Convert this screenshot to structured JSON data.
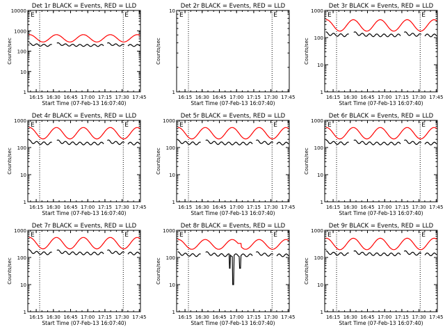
{
  "chart_data": [
    {
      "type": "line",
      "title": "Det 1r BLACK = Events, RED = LLD",
      "xlabel": "Start Time (07-Feb-13 16:07:40)",
      "ylabel": "Counts/sec",
      "ylim": [
        1,
        10000
      ],
      "yscale": "log",
      "xlim": [
        "16:07:40",
        "17:46:00"
      ],
      "x_ticks": [
        "16:15",
        "16:30",
        "16:45",
        "17:00",
        "17:15",
        "17:30",
        "17:45"
      ],
      "y_ticks": [
        "1",
        "10",
        "100",
        "1000",
        "10000"
      ],
      "marker": "E",
      "vlines": [
        "16:18",
        "17:31"
      ],
      "series": [
        {
          "name": "Events",
          "color": "#000000",
          "baseline": 190,
          "gaps": [
            [
              "16:29",
              "16:33"
            ],
            [
              "17:14",
              "17:17"
            ],
            [
              "17:32",
              "17:35"
            ]
          ]
        },
        {
          "name": "LLD",
          "color": "#ff0000",
          "baseline": 380,
          "amplitude": 0.3
        }
      ]
    },
    {
      "type": "line",
      "title": "Det 2r BLACK = Events, RED = LLD",
      "xlabel": "Start Time (07-Feb-13 16:07:40)",
      "ylabel": "Counts/sec",
      "ylim": [
        1,
        10
      ],
      "yscale": "log",
      "xlim": [
        "16:07:40",
        "17:46:00"
      ],
      "x_ticks": [
        "16:15",
        "16:30",
        "16:45",
        "17:00",
        "17:15",
        "17:30",
        "17:45"
      ],
      "y_ticks": [
        "1",
        "10"
      ],
      "marker": "E",
      "vlines": [
        "16:18",
        "17:31"
      ],
      "series": []
    },
    {
      "type": "line",
      "title": "Det 3r BLACK = Events, RED = LLD",
      "xlabel": "Start Time (07-Feb-13 16:07:40)",
      "ylabel": "Counts/sec",
      "ylim": [
        1,
        1000
      ],
      "yscale": "log",
      "xlim": [
        "16:07:40",
        "17:46:00"
      ],
      "x_ticks": [
        "16:15",
        "16:30",
        "16:45",
        "17:00",
        "17:15",
        "17:30",
        "17:45"
      ],
      "y_ticks": [
        "1",
        "10",
        "100",
        "1000"
      ],
      "marker": "E",
      "vlines": [
        "16:18",
        "17:31"
      ],
      "series": [
        {
          "name": "Events",
          "color": "#000000",
          "baseline": 120,
          "gaps": [
            [
              "16:29",
              "16:33"
            ],
            [
              "17:14",
              "17:17"
            ],
            [
              "17:32",
              "17:35"
            ]
          ]
        },
        {
          "name": "LLD",
          "color": "#ff0000",
          "baseline": 250,
          "amplitude": 0.35
        }
      ]
    },
    {
      "type": "line",
      "title": "Det 4r BLACK = Events, RED = LLD",
      "xlabel": "Start Time (07-Feb-13 16:07:40)",
      "ylabel": "Counts/sec",
      "ylim": [
        1,
        1000
      ],
      "yscale": "log",
      "xlim": [
        "16:07:40",
        "17:46:00"
      ],
      "x_ticks": [
        "16:15",
        "16:30",
        "16:45",
        "17:00",
        "17:15",
        "17:30",
        "17:45"
      ],
      "y_ticks": [
        "1",
        "10",
        "100",
        "1000"
      ],
      "marker": "E",
      "vlines": [
        "16:18",
        "17:31"
      ],
      "series": [
        {
          "name": "Events",
          "color": "#000000",
          "baseline": 140,
          "gaps": [
            [
              "16:29",
              "16:33"
            ],
            [
              "17:14",
              "17:17"
            ],
            [
              "17:32",
              "17:35"
            ]
          ]
        },
        {
          "name": "LLD",
          "color": "#ff0000",
          "baseline": 300,
          "amplitude": 0.35
        }
      ]
    },
    {
      "type": "line",
      "title": "Det 5r BLACK = Events, RED = LLD",
      "xlabel": "Start Time (07-Feb-13 16:07:40)",
      "ylabel": "Counts/sec",
      "ylim": [
        1,
        1000
      ],
      "yscale": "log",
      "xlim": [
        "16:07:40",
        "17:46:00"
      ],
      "x_ticks": [
        "16:15",
        "16:30",
        "16:45",
        "17:00",
        "17:15",
        "17:30",
        "17:45"
      ],
      "y_ticks": [
        "1",
        "10",
        "100",
        "1000"
      ],
      "marker": "E",
      "vlines": [
        "16:18",
        "17:31"
      ],
      "series": [
        {
          "name": "Events",
          "color": "#000000",
          "baseline": 140,
          "gaps": [
            [
              "16:29",
              "16:33"
            ],
            [
              "17:14",
              "17:17"
            ],
            [
              "17:32",
              "17:35"
            ]
          ]
        },
        {
          "name": "LLD",
          "color": "#ff0000",
          "baseline": 300,
          "amplitude": 0.35
        }
      ]
    },
    {
      "type": "line",
      "title": "Det 6r BLACK = Events, RED = LLD",
      "xlabel": "Start Time (07-Feb-13 16:07:40)",
      "ylabel": "Counts/sec",
      "ylim": [
        1,
        1000
      ],
      "yscale": "log",
      "xlim": [
        "16:07:40",
        "17:46:00"
      ],
      "x_ticks": [
        "16:15",
        "16:30",
        "16:45",
        "17:00",
        "17:15",
        "17:30",
        "17:45"
      ],
      "y_ticks": [
        "1",
        "10",
        "100",
        "1000"
      ],
      "marker": "E",
      "vlines": [
        "16:18",
        "17:31"
      ],
      "series": [
        {
          "name": "Events",
          "color": "#000000",
          "baseline": 140,
          "gaps": [
            [
              "16:29",
              "16:33"
            ],
            [
              "17:14",
              "17:17"
            ],
            [
              "17:32",
              "17:35"
            ]
          ]
        },
        {
          "name": "LLD",
          "color": "#ff0000",
          "baseline": 300,
          "amplitude": 0.35
        }
      ]
    },
    {
      "type": "line",
      "title": "Det 7r BLACK = Events, RED = LLD",
      "xlabel": "Start Time (07-Feb-13 16:07:40)",
      "ylabel": "Counts/sec",
      "ylim": [
        1,
        1000
      ],
      "yscale": "log",
      "xlim": [
        "16:07:40",
        "17:46:00"
      ],
      "x_ticks": [
        "16:15",
        "16:30",
        "16:45",
        "17:00",
        "17:15",
        "17:30",
        "17:45"
      ],
      "y_ticks": [
        "1",
        "10",
        "100",
        "1000"
      ],
      "marker": "E",
      "vlines": [
        "16:18",
        "17:31"
      ],
      "series": [
        {
          "name": "Events",
          "color": "#000000",
          "baseline": 140,
          "gaps": [
            [
              "16:29",
              "16:33"
            ],
            [
              "17:14",
              "17:17"
            ],
            [
              "17:32",
              "17:35"
            ]
          ]
        },
        {
          "name": "LLD",
          "color": "#ff0000",
          "baseline": 300,
          "amplitude": 0.35
        }
      ]
    },
    {
      "type": "line",
      "title": "Det 8r BLACK = Events, RED = LLD",
      "xlabel": "Start Time (07-Feb-13 16:07:40)",
      "ylabel": "Counts/sec",
      "ylim": [
        1,
        1000
      ],
      "yscale": "log",
      "xlim": [
        "16:07:40",
        "17:46:00"
      ],
      "x_ticks": [
        "16:15",
        "16:30",
        "16:45",
        "17:00",
        "17:15",
        "17:30",
        "17:45"
      ],
      "y_ticks": [
        "1",
        "10",
        "100",
        "1000"
      ],
      "marker": "E",
      "vlines": [
        "16:18",
        "17:31"
      ],
      "series": [
        {
          "name": "Events",
          "color": "#000000",
          "baseline": 120,
          "gaps": [
            [
              "16:29",
              "16:33"
            ],
            [
              "17:14",
              "17:17"
            ],
            [
              "17:32",
              "17:35"
            ]
          ],
          "dips": [
            [
              "16:54",
              40
            ],
            [
              "16:57",
              10
            ],
            [
              "17:03",
              40
            ]
          ]
        },
        {
          "name": "LLD",
          "color": "#ff0000",
          "baseline": 270,
          "amplitude": 0.3,
          "bump": [
            "16:54",
            "17:04",
            330
          ]
        }
      ]
    },
    {
      "type": "line",
      "title": "Det 9r BLACK = Events, RED = LLD",
      "xlabel": "Start Time (07-Feb-13 16:07:40)",
      "ylabel": "Counts/sec",
      "ylim": [
        1,
        1000
      ],
      "yscale": "log",
      "xlim": [
        "16:07:40",
        "17:46:00"
      ],
      "x_ticks": [
        "16:15",
        "16:30",
        "16:45",
        "17:00",
        "17:15",
        "17:30",
        "17:45"
      ],
      "y_ticks": [
        "1",
        "10",
        "100",
        "1000"
      ],
      "marker": "E",
      "vlines": [
        "16:18",
        "17:31"
      ],
      "series": [
        {
          "name": "Events",
          "color": "#000000",
          "baseline": 130,
          "gaps": [
            [
              "16:29",
              "16:33"
            ],
            [
              "17:14",
              "17:17"
            ],
            [
              "17:32",
              "17:35"
            ]
          ]
        },
        {
          "name": "LLD",
          "color": "#ff0000",
          "baseline": 280,
          "amplitude": 0.35
        }
      ]
    }
  ]
}
